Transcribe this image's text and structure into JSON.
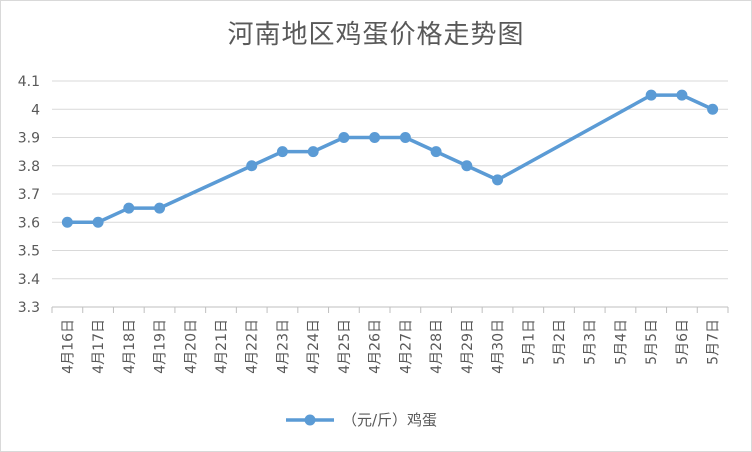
{
  "chart_data": {
    "type": "line",
    "title": "河南地区鸡蛋价格走势图",
    "categories": [
      "4月16日",
      "4月17日",
      "4月18日",
      "4月19日",
      "4月20日",
      "4月21日",
      "4月22日",
      "4月23日",
      "4月24日",
      "4月25日",
      "4月26日",
      "4月27日",
      "4月28日",
      "4月29日",
      "4月30日",
      "5月1日",
      "5月2日",
      "5月3日",
      "5月4日",
      "5月5日",
      "5月6日",
      "5月7日"
    ],
    "series": [
      {
        "name": "（元/斤）鸡蛋",
        "values": [
          3.6,
          3.6,
          3.65,
          3.65,
          null,
          null,
          3.8,
          3.85,
          3.85,
          3.9,
          3.9,
          3.9,
          3.85,
          3.8,
          3.75,
          null,
          null,
          null,
          null,
          4.05,
          4.05,
          4.0
        ],
        "color": "#5b9bd5"
      }
    ],
    "ylim": [
      3.3,
      4.1
    ],
    "yticks": [
      "4.1",
      "4",
      "3.9",
      "3.8",
      "3.7",
      "3.6",
      "3.5",
      "3.4",
      "3.3"
    ],
    "ytick_values": [
      4.1,
      4.0,
      3.9,
      3.8,
      3.7,
      3.6,
      3.5,
      3.4,
      3.3
    ],
    "grid": true,
    "legend": "bottom",
    "xlabel": "",
    "ylabel": ""
  }
}
